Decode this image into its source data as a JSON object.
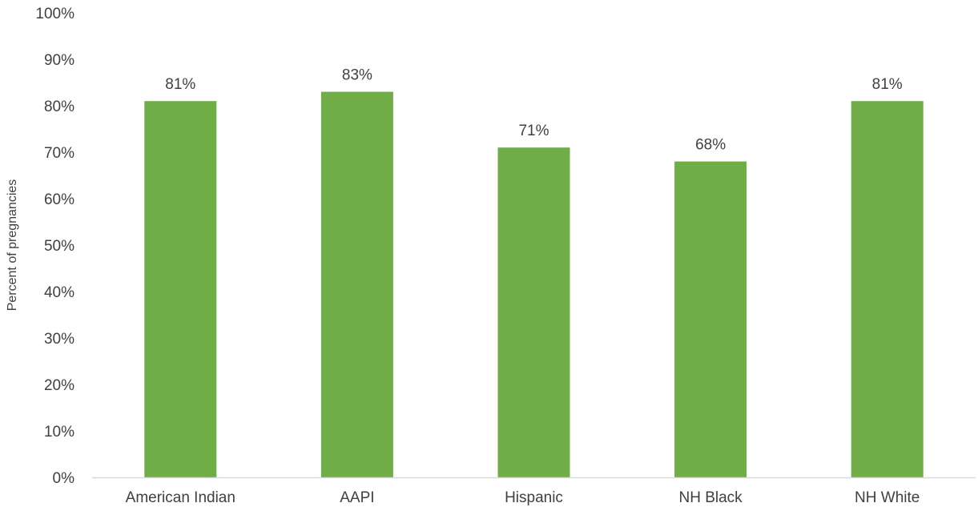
{
  "chart_data": {
    "type": "bar",
    "categories": [
      "American Indian",
      "AAPI",
      "Hispanic",
      "NH Black",
      "NH White"
    ],
    "values": [
      81,
      83,
      71,
      68,
      81
    ],
    "data_labels": [
      "81%",
      "83%",
      "71%",
      "68%",
      "81%"
    ],
    "title": "",
    "xlabel": "",
    "ylabel": "Percent of pregnancies",
    "ylim": [
      0,
      100
    ],
    "y_ticks": [
      0,
      10,
      20,
      30,
      40,
      50,
      60,
      70,
      80,
      90,
      100
    ],
    "y_tick_labels": [
      "0%",
      "10%",
      "20%",
      "30%",
      "40%",
      "50%",
      "60%",
      "70%",
      "80%",
      "90%",
      "100%"
    ],
    "grid": false,
    "legend": "none",
    "bar_color": "#70AD47",
    "axis_color": "#D9D9D9",
    "text_color": "#404040"
  }
}
